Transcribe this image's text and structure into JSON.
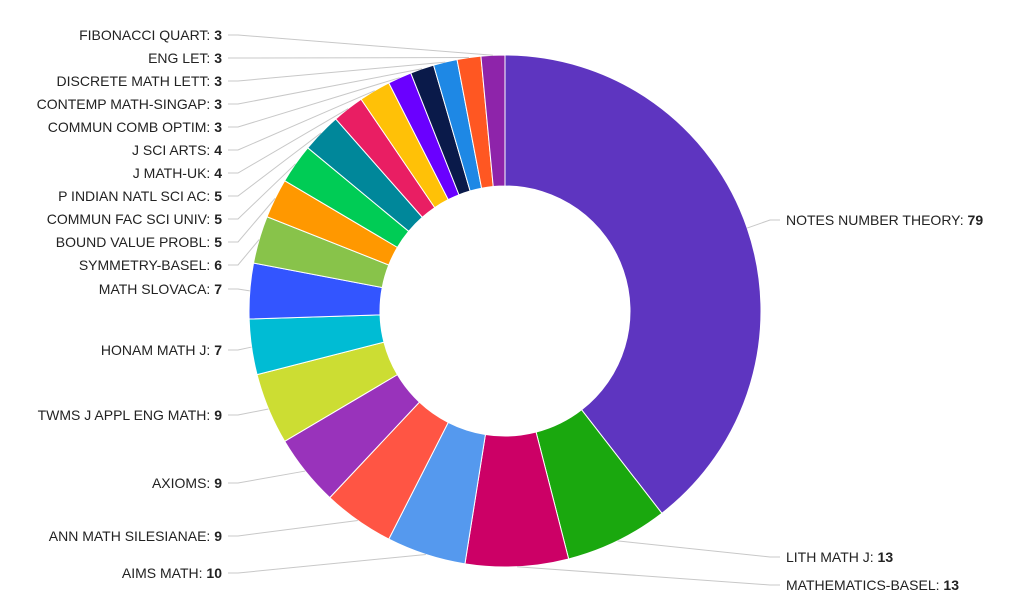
{
  "chart_data": {
    "type": "donut",
    "categories": [
      "NOTES NUMBER THEORY",
      "LITH MATH J",
      "MATHEMATICS-BASEL",
      "AIMS MATH",
      "ANN MATH SILESIANAE",
      "AXIOMS",
      "TWMS J APPL ENG MATH",
      "HONAM MATH J",
      "MATH SLOVACA",
      "SYMMETRY-BASEL",
      "BOUND VALUE PROBL",
      "COMMUN FAC SCI UNIV",
      "P INDIAN NATL SCI AC",
      "J MATH-UK",
      "J SCI ARTS",
      "COMMUN COMB OPTIM",
      "CONTEMP MATH-SINGAP",
      "DISCRETE MATH LETT",
      "ENG LET",
      "FIBONACCI QUART"
    ],
    "values": [
      79,
      13,
      13,
      10,
      9,
      9,
      9,
      7,
      7,
      6,
      5,
      5,
      5,
      4,
      4,
      3,
      3,
      3,
      3,
      3
    ],
    "colors": [
      "#5e35c0",
      "#1aa80e",
      "#cc0066",
      "#5599ee",
      "#ff5544",
      "#9933bb",
      "#ccdd33",
      "#00bcd4",
      "#3355ff",
      "#88c34a",
      "#ff9800",
      "#00cc55",
      "#00879a",
      "#e91e63",
      "#ffc107",
      "#6a00ff",
      "#0a1a4a",
      "#1e88e5",
      "#ff5722",
      "#8e24aa"
    ]
  }
}
